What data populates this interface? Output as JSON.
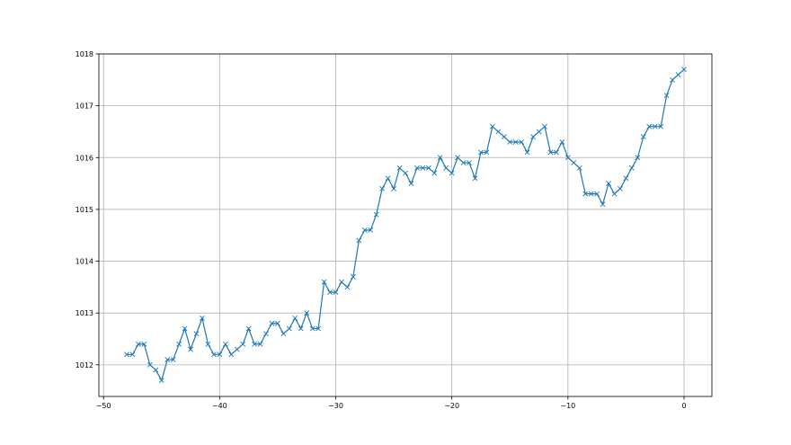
{
  "chart_data": {
    "type": "line",
    "title": "",
    "xlabel": "",
    "ylabel": "",
    "xlim": [
      -50.4,
      2.4
    ],
    "ylim": [
      1011.39,
      1018
    ],
    "grid": true,
    "marker": "x",
    "color": "#1f77b4",
    "x_ticks": [
      -50,
      -40,
      -30,
      -20,
      -10,
      0
    ],
    "x_tick_labels": [
      "−50",
      "−40",
      "−30",
      "−20",
      "−10",
      "0"
    ],
    "y_ticks": [
      1012,
      1013,
      1014,
      1015,
      1016,
      1017,
      1018
    ],
    "y_tick_labels": [
      "1012",
      "1013",
      "1014",
      "1015",
      "1016",
      "1017",
      "1018"
    ],
    "x_start": -48,
    "x_step": 0.5,
    "values": [
      1012.2,
      1012.2,
      1012.4,
      1012.4,
      1012.0,
      1011.9,
      1011.7,
      1012.1,
      1012.1,
      1012.4,
      1012.7,
      1012.3,
      1012.6,
      1012.9,
      1012.4,
      1012.2,
      1012.2,
      1012.4,
      1012.2,
      1012.3,
      1012.4,
      1012.7,
      1012.4,
      1012.4,
      1012.6,
      1012.8,
      1012.8,
      1012.6,
      1012.7,
      1012.9,
      1012.7,
      1013.0,
      1012.7,
      1012.7,
      1013.6,
      1013.4,
      1013.4,
      1013.6,
      1013.5,
      1013.7,
      1014.4,
      1014.6,
      1014.6,
      1014.9,
      1015.4,
      1015.6,
      1015.4,
      1015.8,
      1015.7,
      1015.5,
      1015.8,
      1015.8,
      1015.8,
      1015.7,
      1016.0,
      1015.8,
      1015.7,
      1016.0,
      1015.9,
      1015.9,
      1015.6,
      1016.1,
      1016.1,
      1016.6,
      1016.5,
      1016.4,
      1016.3,
      1016.3,
      1016.3,
      1016.1,
      1016.4,
      1016.5,
      1016.6,
      1016.1,
      1016.1,
      1016.3,
      1016.0,
      1015.9,
      1015.8,
      1015.3,
      1015.3,
      1015.3,
      1015.1,
      1015.5,
      1015.3,
      1015.4,
      1015.6,
      1015.8,
      1016.0,
      1016.4,
      1016.6,
      1016.6,
      1016.6,
      1017.2,
      1017.5,
      1017.6,
      1017.7
    ]
  }
}
